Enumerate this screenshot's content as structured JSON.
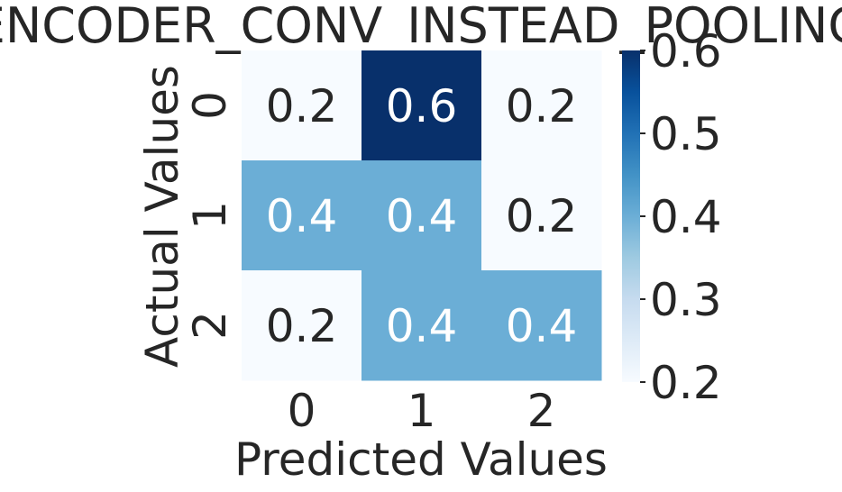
{
  "chart_data": {
    "type": "heatmap",
    "title": "ENCODER_CONV_INSTEAD_POOLING",
    "xlabel": "Predicted Values",
    "ylabel": "Actual Values",
    "x_categories": [
      "0",
      "1",
      "2"
    ],
    "y_categories": [
      "0",
      "1",
      "2"
    ],
    "values": [
      [
        0.2,
        0.6,
        0.2
      ],
      [
        0.4,
        0.4,
        0.2
      ],
      [
        0.2,
        0.4,
        0.4
      ]
    ],
    "colormap": "Blues",
    "colorbar": {
      "range": [
        0.2,
        0.6
      ],
      "ticks": [
        "0.2",
        "0.3",
        "0.4",
        "0.5",
        "0.6"
      ]
    },
    "colors": {
      "low": "#f7fbff",
      "mid": "#6baed6",
      "high": "#08306b",
      "text_dark": "#262626",
      "text_light": "#ffffff"
    }
  }
}
